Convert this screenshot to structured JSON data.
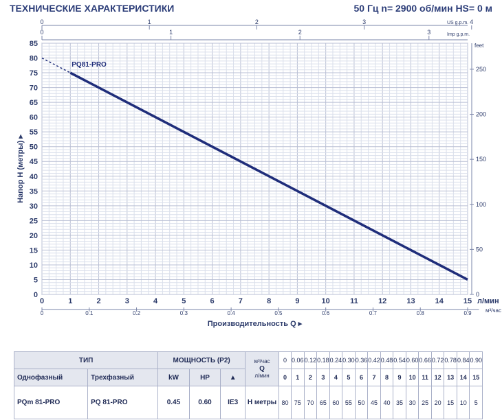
{
  "header": {
    "title": "ТЕХНИЧЕСКИЕ ХАРАКТЕРИСТИКИ",
    "conditions": "50 Гц   n= 2900 об/мин   HS= 0 м"
  },
  "chart_data": {
    "type": "line",
    "x": [
      1,
      15
    ],
    "series": [
      {
        "name": "PQ81-PRO",
        "x": [
          1,
          15
        ],
        "y": [
          75,
          5
        ]
      },
      {
        "name": "",
        "x": [
          0,
          1
        ],
        "y": [
          80,
          75
        ],
        "style": "dashed"
      }
    ],
    "xlabel": "Производительность Q",
    "xunit": "л/мин",
    "ylabel": "Напор H (метры)",
    "xlim": [
      0,
      15
    ],
    "ylim": [
      0,
      85
    ],
    "x_ticks": [
      "0",
      "1",
      "2",
      "3",
      "4",
      "5",
      "6",
      "7",
      "8",
      "9",
      "10",
      "11",
      "12",
      "13",
      "14",
      "15"
    ],
    "y_ticks": [
      "0",
      "5",
      "10",
      "15",
      "20",
      "25",
      "30",
      "35",
      "40",
      "45",
      "50",
      "55",
      "60",
      "65",
      "70",
      "75",
      "80",
      "85"
    ],
    "secondary_x_m3h": {
      "unit": "м³/час",
      "ticks": [
        "0",
        "0.1",
        "0.2",
        "0.3",
        "0.4",
        "0.5",
        "0.6",
        "0.7",
        "0.8",
        "0.9"
      ]
    },
    "us_gpm": {
      "unit": "US g.p.m.",
      "ticks": [
        "0",
        "1",
        "2",
        "3",
        "4"
      ]
    },
    "imp_gpm": {
      "unit": "Imp g.p.m.",
      "ticks": [
        "0",
        "1",
        "2",
        "3"
      ]
    },
    "feet": {
      "unit": "feet",
      "ticks": [
        "0",
        "50",
        "100",
        "150",
        "200",
        "250"
      ]
    },
    "grid": true,
    "line_color": "#1f2d7a"
  },
  "table": {
    "type_header": "ТИП",
    "single_phase": "Однофазный",
    "three_phase": "Трехфазный",
    "power_header": "МОЩНОСТЬ (P2)",
    "kw": "kW",
    "hp": "HP",
    "q_label": "Q",
    "m3h_unit": "м³/час",
    "lmin_unit": "л/мин",
    "h_label": "H метры",
    "m3h_values": [
      "0",
      "0.06",
      "0.12",
      "0.18",
      "0.24",
      "0.30",
      "0.36",
      "0.42",
      "0.48",
      "0.54",
      "0.60",
      "0.66",
      "0.72",
      "0.78",
      "0.84",
      "0.90"
    ],
    "lmin_values": [
      "0",
      "1",
      "2",
      "3",
      "4",
      "5",
      "6",
      "7",
      "8",
      "9",
      "10",
      "11",
      "12",
      "13",
      "14",
      "15"
    ],
    "row": {
      "model_1ph": "PQm 81-PRO",
      "model_3ph": "PQ 81-PRO",
      "kw": "0.45",
      "hp": "0.60",
      "ie": "IE3",
      "h_values": [
        "80",
        "75",
        "70",
        "65",
        "60",
        "55",
        "50",
        "45",
        "40",
        "35",
        "30",
        "25",
        "20",
        "15",
        "10",
        "5"
      ]
    }
  }
}
